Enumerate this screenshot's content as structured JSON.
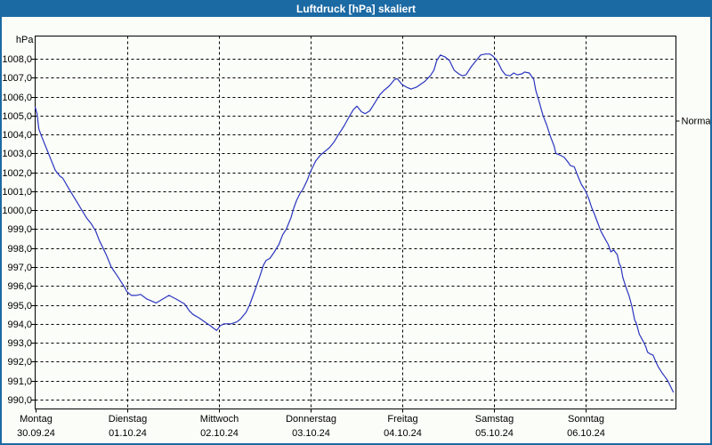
{
  "window": {
    "title": "Luftdruck [hPa] skaliert"
  },
  "colors": {
    "titlebar_bg": "#1c6aa4",
    "window_border": "#1c6aa4",
    "title_text": "#ffffff",
    "plot_bg": "#fbfdf8",
    "grid": "#000000",
    "axis": "#000000",
    "line": "#2a35c0",
    "label_text": "#000000"
  },
  "chart_data": {
    "type": "line",
    "title": "Luftdruck [hPa] skaliert",
    "grid": "dashed",
    "y_axis": {
      "unit_label": "hPa",
      "range": [
        989.5,
        1009.2
      ],
      "ticks": [
        {
          "value": 1008,
          "label": "1008,0"
        },
        {
          "value": 1007,
          "label": "1007,0"
        },
        {
          "value": 1006,
          "label": "1006,0"
        },
        {
          "value": 1005,
          "label": "1005,0"
        },
        {
          "value": 1004,
          "label": "1004,0"
        },
        {
          "value": 1003,
          "label": "1003,0"
        },
        {
          "value": 1002,
          "label": "1002,0"
        },
        {
          "value": 1001,
          "label": "1001,0"
        },
        {
          "value": 1000,
          "label": "1000,0"
        },
        {
          "value": 999,
          "label": "999,0"
        },
        {
          "value": 998,
          "label": "998,0"
        },
        {
          "value": 997,
          "label": "997,0"
        },
        {
          "value": 996,
          "label": "996,0"
        },
        {
          "value": 995,
          "label": "995,0"
        },
        {
          "value": 994,
          "label": "994,0"
        },
        {
          "value": 993,
          "label": "993,0"
        },
        {
          "value": 992,
          "label": "992,0"
        },
        {
          "value": 991,
          "label": "991,0"
        },
        {
          "value": 990,
          "label": "990,0"
        }
      ]
    },
    "x_axis": {
      "range_days": [
        0,
        6.99
      ],
      "ticks": [
        {
          "day": 0,
          "name": "Montag",
          "date": "30.09.24"
        },
        {
          "day": 1,
          "name": "Dienstag",
          "date": "01.10.24"
        },
        {
          "day": 2,
          "name": "Mittwoch",
          "date": "02.10.24"
        },
        {
          "day": 3,
          "name": "Donnerstag",
          "date": "03.10.24"
        },
        {
          "day": 4,
          "name": "Freitag",
          "date": "04.10.24"
        },
        {
          "day": 5,
          "name": "Samstag",
          "date": "05.10.24"
        },
        {
          "day": 6,
          "name": "Sonntag",
          "date": "06.10.24"
        }
      ]
    },
    "right_axis": {
      "marker_label": "Normal",
      "marker_value": 1004.7
    },
    "series": [
      {
        "name": "Luftdruck [hPa]",
        "color": "#2a35c0",
        "points": [
          [
            0.0,
            1005.45
          ],
          [
            0.02,
            1005.1
          ],
          [
            0.04,
            1004.3
          ],
          [
            0.07,
            1003.9
          ],
          [
            0.12,
            1003.3
          ],
          [
            0.17,
            1002.7
          ],
          [
            0.22,
            1002.1
          ],
          [
            0.27,
            1001.8
          ],
          [
            0.3,
            1001.7
          ],
          [
            0.36,
            1001.2
          ],
          [
            0.41,
            1000.8
          ],
          [
            0.46,
            1000.4
          ],
          [
            0.51,
            1000.0
          ],
          [
            0.56,
            999.6
          ],
          [
            0.61,
            999.3
          ],
          [
            0.66,
            998.9
          ],
          [
            0.7,
            998.4
          ],
          [
            0.75,
            997.9
          ],
          [
            0.78,
            997.6
          ],
          [
            0.83,
            997.0
          ],
          [
            0.9,
            996.5
          ],
          [
            0.98,
            995.9
          ],
          [
            1.0,
            995.7
          ],
          [
            1.05,
            995.5
          ],
          [
            1.1,
            995.5
          ],
          [
            1.15,
            995.55
          ],
          [
            1.22,
            995.3
          ],
          [
            1.32,
            995.1
          ],
          [
            1.39,
            995.3
          ],
          [
            1.46,
            995.5
          ],
          [
            1.54,
            995.3
          ],
          [
            1.63,
            995.05
          ],
          [
            1.68,
            994.7
          ],
          [
            1.72,
            994.5
          ],
          [
            1.79,
            994.3
          ],
          [
            1.85,
            994.1
          ],
          [
            1.91,
            993.9
          ],
          [
            1.95,
            993.75
          ],
          [
            1.98,
            993.65
          ],
          [
            2.02,
            993.9
          ],
          [
            2.06,
            994.0
          ],
          [
            2.14,
            994.0
          ],
          [
            2.2,
            994.1
          ],
          [
            2.24,
            994.25
          ],
          [
            2.3,
            994.6
          ],
          [
            2.34,
            995.0
          ],
          [
            2.4,
            995.8
          ],
          [
            2.45,
            996.5
          ],
          [
            2.49,
            997.1
          ],
          [
            2.52,
            997.35
          ],
          [
            2.56,
            997.45
          ],
          [
            2.61,
            997.8
          ],
          [
            2.66,
            998.2
          ],
          [
            2.7,
            998.7
          ],
          [
            2.74,
            999.0
          ],
          [
            2.79,
            999.6
          ],
          [
            2.82,
            1000.1
          ],
          [
            2.85,
            1000.5
          ],
          [
            2.89,
            1000.9
          ],
          [
            2.92,
            1001.1
          ],
          [
            2.97,
            1001.6
          ],
          [
            3.0,
            1002.0
          ],
          [
            3.06,
            1002.6
          ],
          [
            3.11,
            1002.9
          ],
          [
            3.16,
            1003.1
          ],
          [
            3.21,
            1003.3
          ],
          [
            3.26,
            1003.6
          ],
          [
            3.31,
            1004.0
          ],
          [
            3.37,
            1004.45
          ],
          [
            3.42,
            1004.9
          ],
          [
            3.47,
            1005.3
          ],
          [
            3.51,
            1005.5
          ],
          [
            3.56,
            1005.2
          ],
          [
            3.6,
            1005.1
          ],
          [
            3.65,
            1005.25
          ],
          [
            3.69,
            1005.55
          ],
          [
            3.76,
            1006.1
          ],
          [
            3.81,
            1006.35
          ],
          [
            3.86,
            1006.55
          ],
          [
            3.92,
            1006.9
          ],
          [
            3.95,
            1006.95
          ],
          [
            4.0,
            1006.65
          ],
          [
            4.05,
            1006.5
          ],
          [
            4.1,
            1006.4
          ],
          [
            4.16,
            1006.5
          ],
          [
            4.25,
            1006.8
          ],
          [
            4.31,
            1007.1
          ],
          [
            4.35,
            1007.4
          ],
          [
            4.38,
            1007.9
          ],
          [
            4.42,
            1008.2
          ],
          [
            4.47,
            1008.1
          ],
          [
            4.52,
            1007.9
          ],
          [
            4.57,
            1007.4
          ],
          [
            4.62,
            1007.2
          ],
          [
            4.66,
            1007.1
          ],
          [
            4.7,
            1007.15
          ],
          [
            4.76,
            1007.6
          ],
          [
            4.81,
            1007.9
          ],
          [
            4.86,
            1008.2
          ],
          [
            4.91,
            1008.25
          ],
          [
            4.96,
            1008.25
          ],
          [
            4.99,
            1008.15
          ],
          [
            5.02,
            1008.0
          ],
          [
            5.05,
            1007.8
          ],
          [
            5.09,
            1007.4
          ],
          [
            5.13,
            1007.15
          ],
          [
            5.18,
            1007.1
          ],
          [
            5.22,
            1007.25
          ],
          [
            5.26,
            1007.15
          ],
          [
            5.31,
            1007.2
          ],
          [
            5.34,
            1007.3
          ],
          [
            5.39,
            1007.25
          ],
          [
            5.44,
            1006.9
          ],
          [
            5.46,
            1006.35
          ],
          [
            5.5,
            1005.7
          ],
          [
            5.54,
            1005.0
          ],
          [
            5.58,
            1004.5
          ],
          [
            5.62,
            1003.9
          ],
          [
            5.66,
            1003.4
          ],
          [
            5.68,
            1003.0
          ],
          [
            5.73,
            1002.9
          ],
          [
            5.77,
            1002.8
          ],
          [
            5.81,
            1002.55
          ],
          [
            5.84,
            1002.35
          ],
          [
            5.88,
            1002.3
          ],
          [
            5.92,
            1001.8
          ],
          [
            5.96,
            1001.35
          ],
          [
            6.0,
            1001.05
          ],
          [
            6.04,
            1000.6
          ],
          [
            6.07,
            1000.15
          ],
          [
            6.1,
            999.8
          ],
          [
            6.14,
            999.3
          ],
          [
            6.17,
            998.9
          ],
          [
            6.22,
            998.45
          ],
          [
            6.25,
            998.2
          ],
          [
            6.28,
            997.8
          ],
          [
            6.31,
            997.9
          ],
          [
            6.35,
            997.65
          ],
          [
            6.37,
            997.2
          ],
          [
            6.39,
            997.0
          ],
          [
            6.41,
            996.45
          ],
          [
            6.44,
            996.0
          ],
          [
            6.48,
            995.45
          ],
          [
            6.51,
            994.9
          ],
          [
            6.54,
            994.2
          ],
          [
            6.56,
            994.0
          ],
          [
            6.59,
            993.45
          ],
          [
            6.63,
            993.1
          ],
          [
            6.66,
            992.8
          ],
          [
            6.68,
            992.5
          ],
          [
            6.71,
            992.4
          ],
          [
            6.74,
            992.35
          ],
          [
            6.77,
            992.0
          ],
          [
            6.8,
            991.7
          ],
          [
            6.84,
            991.4
          ],
          [
            6.87,
            991.2
          ],
          [
            6.9,
            991.0
          ],
          [
            6.93,
            990.7
          ],
          [
            6.96,
            990.4
          ]
        ]
      }
    ]
  }
}
